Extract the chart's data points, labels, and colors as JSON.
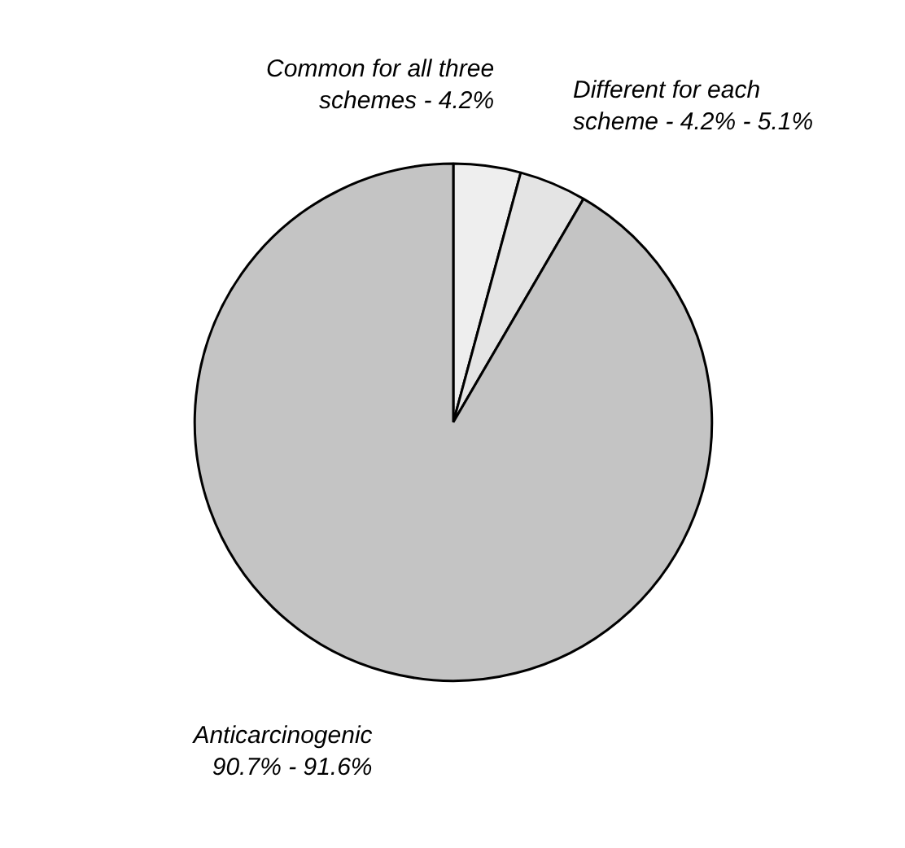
{
  "chart_data": {
    "type": "pie",
    "categories": [
      "Common for all three schemes - 4.2%",
      "Different for each scheme - 4.2% - 5.1%",
      "Anticarcinogenic 90.7% - 91.6%"
    ],
    "values": [
      4.2,
      4.2,
      91.6
    ],
    "colors": [
      "#eeeeee",
      "#e4e4e4",
      "#c4c4c4"
    ]
  }
}
